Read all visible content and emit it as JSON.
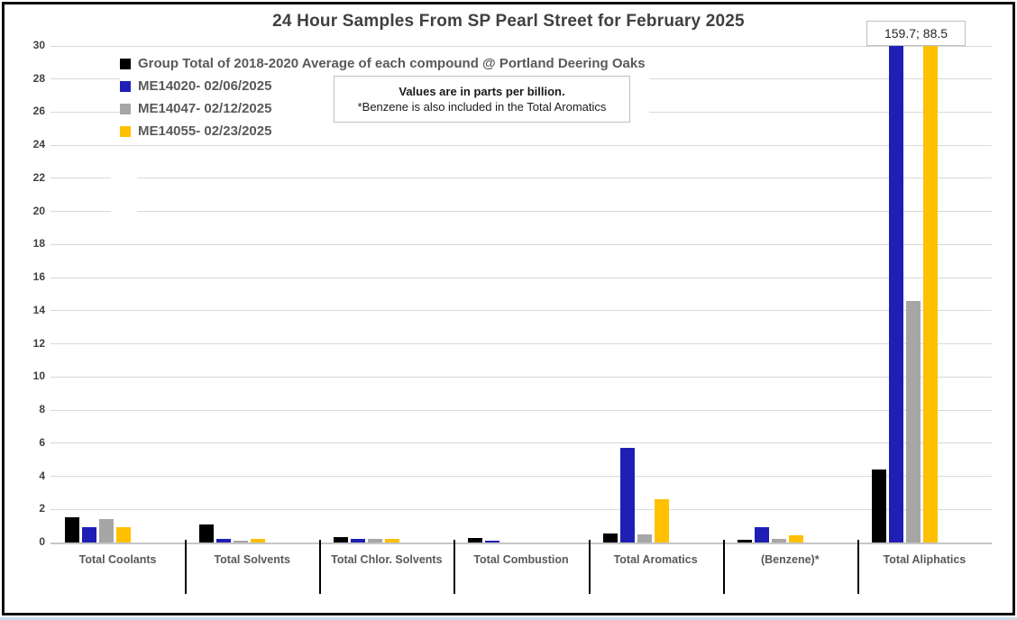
{
  "chart_data": {
    "type": "bar",
    "title": "24 Hour Samples From SP Pearl Street for February 2025",
    "categories": [
      "Total Coolants",
      "Total Solvents",
      "Total Chlor. Solvents",
      "Total Combustion",
      "Total Aromatics",
      "(Benzene)*",
      "Total Aliphatics"
    ],
    "series": [
      {
        "name": "Group Total of 2018-2020 Average of each compound @ Portland Deering Oaks",
        "color": "#000000",
        "values": [
          1.5,
          1.1,
          0.35,
          0.25,
          0.55,
          0.15,
          4.4
        ]
      },
      {
        "name": "ME14020- 02/06/2025",
        "color": "#1f1fb5",
        "values": [
          0.9,
          0.2,
          0.2,
          0.1,
          5.7,
          0.9,
          159.7
        ]
      },
      {
        "name": "ME14047- 02/12/2025",
        "color": "#a6a6a6",
        "values": [
          1.4,
          0.1,
          0.2,
          0,
          0.5,
          0.2,
          14.6
        ]
      },
      {
        "name": "ME14055- 02/23/2025",
        "color": "#ffc000",
        "values": [
          0.95,
          0.2,
          0.2,
          0,
          2.6,
          0.45,
          88.5
        ]
      }
    ],
    "xlabel": "",
    "ylabel": "",
    "ylim": [
      0,
      30
    ],
    "ytick_step": 2,
    "yticks": [
      0,
      2,
      4,
      6,
      8,
      10,
      12,
      14,
      16,
      18,
      20,
      22,
      24,
      26,
      28,
      30
    ],
    "grid": true,
    "legend_position": "upper-left-inside",
    "note_box": {
      "line1": "Values are in parts per billion.",
      "line2": "*Benzene is also included in the Total Aromatics"
    },
    "offscale_label": {
      "text": "159.7; 88.5",
      "category": "Total Aliphatics",
      "series": [
        "ME14020- 02/06/2025",
        "ME14055- 02/23/2025"
      ]
    },
    "colors": {
      "grid": "#d9d9d9",
      "axis": "#c6c6c6",
      "title_text": "#404040",
      "category_text": "#595959",
      "legend_text": "#595959",
      "divider": "#000000"
    }
  }
}
